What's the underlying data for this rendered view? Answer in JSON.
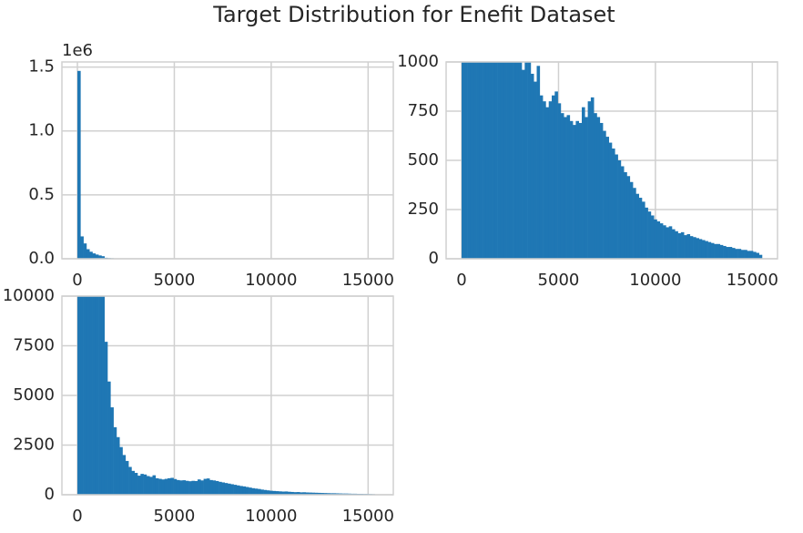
{
  "chart_data": {
    "type": "histogram",
    "title": "Target Distribution for Enefit Dataset",
    "color": "#1f77b4",
    "grid": true,
    "xlim": [
      -800,
      16300
    ],
    "xticks": [
      0,
      5000,
      10000,
      15000
    ],
    "bins": [
      0,
      155,
      310,
      465,
      620,
      775,
      930,
      1085,
      1240,
      1395,
      1550,
      1705,
      1860,
      2015,
      2170,
      2325,
      2480,
      2635,
      2790,
      2945,
      3100,
      3255,
      3410,
      3565,
      3720,
      3875,
      4030,
      4185,
      4340,
      4495,
      4650,
      4805,
      4960,
      5115,
      5270,
      5425,
      5580,
      5735,
      5890,
      6045,
      6200,
      6355,
      6510,
      6665,
      6820,
      6975,
      7130,
      7285,
      7440,
      7595,
      7750,
      7905,
      8060,
      8215,
      8370,
      8525,
      8680,
      8835,
      8990,
      9145,
      9300,
      9455,
      9610,
      9765,
      9920,
      10075,
      10230,
      10385,
      10540,
      10695,
      10850,
      11005,
      11160,
      11315,
      11470,
      11625,
      11780,
      11935,
      12090,
      12245,
      12400,
      12555,
      12710,
      12865,
      13020,
      13175,
      13330,
      13485,
      13640,
      13795,
      13950,
      14105,
      14260,
      14415,
      14570,
      14725,
      14880,
      15035,
      15190,
      15345,
      15500
    ],
    "values": [
      1470000,
      175000,
      120000,
      75000,
      55000,
      42000,
      33000,
      26000,
      20000,
      7700,
      5700,
      4400,
      3400,
      2900,
      2400,
      2000,
      1700,
      1400,
      1200,
      1100,
      960,
      1050,
      1020,
      940,
      900,
      980,
      830,
      800,
      770,
      800,
      830,
      850,
      790,
      740,
      720,
      730,
      700,
      680,
      700,
      690,
      770,
      720,
      800,
      820,
      740,
      720,
      690,
      650,
      620,
      590,
      560,
      530,
      500,
      470,
      440,
      420,
      390,
      360,
      330,
      310,
      290,
      260,
      240,
      220,
      200,
      190,
      180,
      170,
      160,
      165,
      150,
      140,
      130,
      135,
      120,
      125,
      115,
      110,
      105,
      100,
      95,
      90,
      85,
      80,
      75,
      75,
      70,
      65,
      60,
      60,
      55,
      50,
      50,
      45,
      45,
      40,
      40,
      35,
      30,
      20
    ],
    "panels": [
      {
        "ylim": [
          0,
          1540000
        ],
        "offset_label": "1e6",
        "yticks": [
          {
            "value": 0,
            "label": "0.0"
          },
          {
            "value": 500000,
            "label": "0.5"
          },
          {
            "value": 1000000,
            "label": "1.0"
          },
          {
            "value": 1500000,
            "label": "1.5"
          }
        ]
      },
      {
        "ylim": [
          0,
          1000
        ],
        "yticks": [
          0,
          250,
          500,
          750,
          1000
        ]
      },
      {
        "ylim": [
          0,
          10000
        ],
        "yticks": [
          0,
          2500,
          5000,
          7500,
          10000
        ]
      }
    ]
  }
}
